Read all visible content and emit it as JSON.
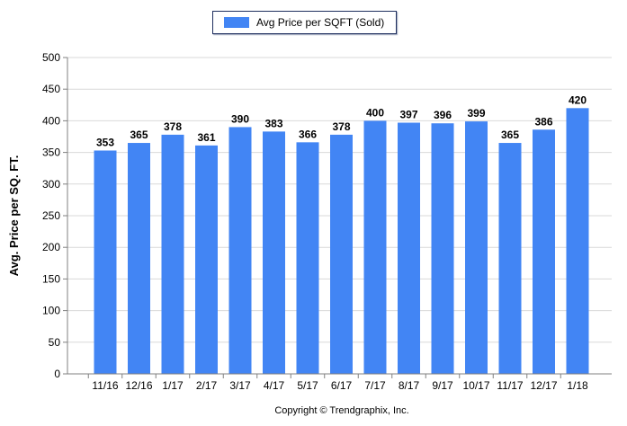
{
  "legend": {
    "label": "Avg Price per SQFT (Sold)",
    "color": "#4285f4"
  },
  "footer": "Copyright © Trendgraphix, Inc.",
  "chart_data": {
    "type": "bar",
    "categories": [
      "11/16",
      "12/16",
      "1/17",
      "2/17",
      "3/17",
      "4/17",
      "5/17",
      "6/17",
      "7/17",
      "8/17",
      "9/17",
      "10/17",
      "11/17",
      "12/17",
      "1/18"
    ],
    "series": [
      {
        "name": "Avg Price per SQFT (Sold)",
        "values": [
          353,
          365,
          378,
          361,
          390,
          383,
          366,
          378,
          400,
          397,
          396,
          399,
          365,
          386,
          420
        ]
      }
    ],
    "ylabel": "Avg. Price per SQ. FT.",
    "xlabel": "",
    "ylim": [
      0,
      500
    ],
    "yticks": [
      0,
      50,
      100,
      150,
      200,
      250,
      300,
      350,
      400,
      450,
      500
    ],
    "grid": true,
    "legend_position": "top-center",
    "bar_color": "#4285f4",
    "data_labels": true
  }
}
